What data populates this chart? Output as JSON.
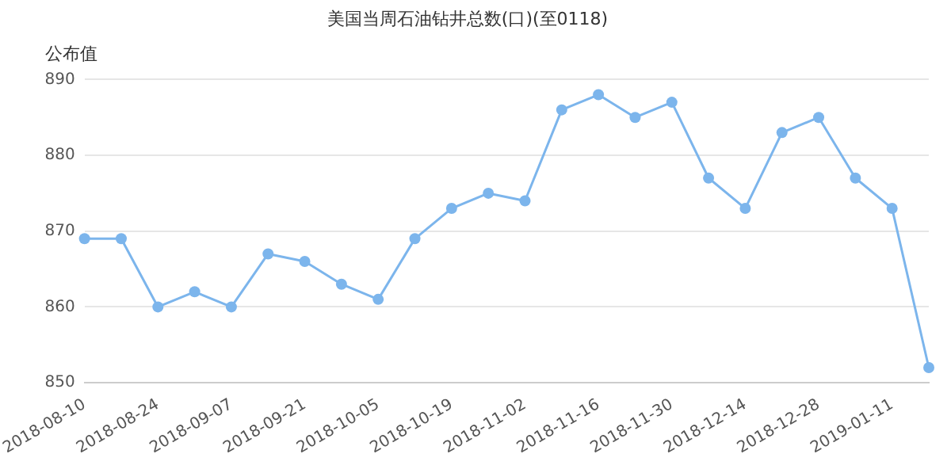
{
  "chart_data": {
    "type": "line",
    "title": "美国当周石油钻井总数(口)(至0118)",
    "categories": [
      "2018-08-10",
      null,
      "2018-08-24",
      null,
      "2018-09-07",
      null,
      "2018-09-21",
      null,
      "2018-10-05",
      null,
      "2018-10-19",
      null,
      "2018-11-02",
      null,
      "2018-11-16",
      null,
      "2018-11-30",
      null,
      "2018-12-14",
      null,
      "2018-12-28",
      null,
      "2019-01-11",
      null
    ],
    "series": [
      {
        "name": "公布值",
        "color": "#7cb5ec",
        "values": [
          869,
          869,
          860,
          862,
          860,
          867,
          866,
          863,
          861,
          869,
          873,
          875,
          874,
          886,
          888,
          885,
          887,
          877,
          873,
          883,
          885,
          877,
          873,
          852
        ]
      }
    ],
    "ylim": [
      850,
      890
    ],
    "yticks": [
      850,
      860,
      870,
      880,
      890
    ],
    "grid": "y",
    "legend": "top left",
    "marker": "circle",
    "line_style": "solid"
  }
}
